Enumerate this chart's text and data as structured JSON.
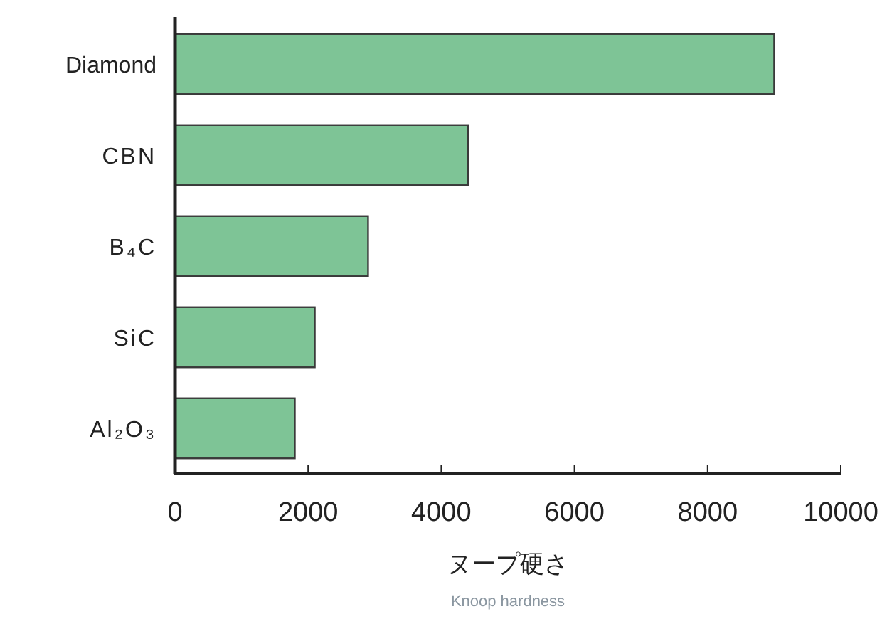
{
  "chart_data": {
    "type": "bar",
    "orientation": "horizontal",
    "categories": [
      "Diamond",
      "CBN",
      "B₄C",
      "SiC",
      "Al₂O₃"
    ],
    "values": [
      9000,
      4400,
      2900,
      2100,
      1800
    ],
    "color": "#7ec496",
    "xlim": [
      0,
      10000
    ],
    "xticks": [
      0,
      2000,
      4000,
      6000,
      8000,
      10000
    ],
    "xlabel": "ヌープ硬さ",
    "annotations": [
      "Knoop hardness"
    ]
  }
}
